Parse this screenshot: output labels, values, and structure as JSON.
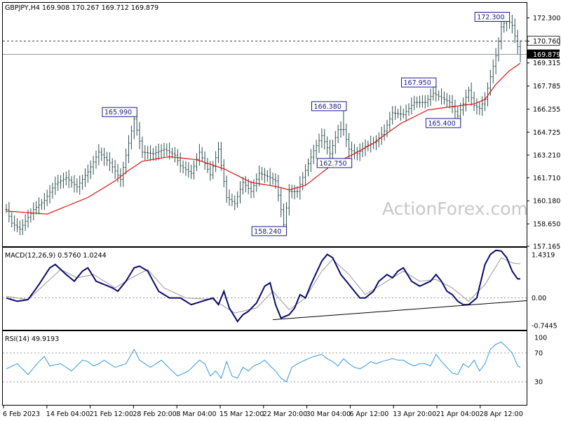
{
  "chart_data": [
    {
      "type": "ohlc",
      "title": "GBPJPY,H4 169.908 170.267 169.712 169.879",
      "ylim": [
        157.165,
        173.3
      ],
      "y_ticks": [
        "172.300",
        "170.760",
        "169.315",
        "167.785",
        "166.255",
        "164.725",
        "163.210",
        "161.710",
        "160.180",
        "158.650",
        "157.165"
      ],
      "current_price": "169.879",
      "reference_level": "170.760",
      "x_labels": [
        "6 Feb 2023",
        "14 Feb 04:00",
        "21 Feb 12:00",
        "28 Feb 20:00",
        "8 Mar 04:00",
        "15 Mar 12:00",
        "22 Mar 20:00",
        "30 Mar 04:00",
        "6 Apr 12:00",
        "13 Apr 20:00",
        "21 Apr 04:00",
        "28 Apr 12:00"
      ],
      "annotations": [
        {
          "text": "165.990",
          "bar": 47,
          "value": 165.99,
          "type": "high"
        },
        {
          "text": "158.240",
          "bar": 102,
          "value": 158.24,
          "type": "low"
        },
        {
          "text": "166.380",
          "bar": 124,
          "value": 166.38,
          "type": "high"
        },
        {
          "text": "162.750",
          "bar": 126,
          "value": 162.75,
          "type": "low"
        },
        {
          "text": "167.950",
          "bar": 157,
          "value": 167.95,
          "type": "high"
        },
        {
          "text": "165.400",
          "bar": 166,
          "value": 165.4,
          "type": "low"
        },
        {
          "text": "172.300",
          "bar": 184,
          "value": 172.3,
          "type": "high"
        }
      ],
      "price_path": [
        [
          0,
          159.6
        ],
        [
          2,
          158.7
        ],
        [
          5,
          158.3
        ],
        [
          10,
          159.6
        ],
        [
          14,
          160.2
        ],
        [
          18,
          161.3
        ],
        [
          22,
          161.7
        ],
        [
          26,
          161.1
        ],
        [
          30,
          162.1
        ],
        [
          34,
          163.4
        ],
        [
          38,
          162.7
        ],
        [
          42,
          161.6
        ],
        [
          45,
          164.0
        ],
        [
          47,
          165.6
        ],
        [
          50,
          163.4
        ],
        [
          54,
          163.3
        ],
        [
          58,
          163.6
        ],
        [
          62,
          163.2
        ],
        [
          64,
          162.5
        ],
        [
          68,
          162.0
        ],
        [
          71,
          163.4
        ],
        [
          75,
          161.9
        ],
        [
          78,
          163.6
        ],
        [
          81,
          160.4
        ],
        [
          84,
          160.0
        ],
        [
          87,
          161.4
        ],
        [
          90,
          160.8
        ],
        [
          93,
          162.0
        ],
        [
          96,
          161.8
        ],
        [
          99,
          161.5
        ],
        [
          101,
          159.6
        ],
        [
          102,
          158.6
        ],
        [
          104,
          160.8
        ],
        [
          107,
          160.8
        ],
        [
          110,
          162.2
        ],
        [
          113,
          163.5
        ],
        [
          116,
          164.5
        ],
        [
          119,
          163.3
        ],
        [
          122,
          164.9
        ],
        [
          124,
          164.9
        ],
        [
          126,
          163.6
        ],
        [
          129,
          163.3
        ],
        [
          132,
          163.8
        ],
        [
          136,
          164.1
        ],
        [
          139,
          164.8
        ],
        [
          142,
          166.0
        ],
        [
          146,
          165.9
        ],
        [
          150,
          166.7
        ],
        [
          154,
          166.7
        ],
        [
          157,
          167.3
        ],
        [
          160,
          167.0
        ],
        [
          163,
          166.7
        ],
        [
          166,
          165.8
        ],
        [
          168,
          166.6
        ],
        [
          170,
          167.5
        ],
        [
          172,
          166.5
        ],
        [
          174,
          166.3
        ],
        [
          176,
          166.9
        ],
        [
          178,
          168.4
        ],
        [
          180,
          169.8
        ],
        [
          182,
          171.7
        ],
        [
          184,
          172.2
        ],
        [
          186,
          171.8
        ],
        [
          188,
          170.4
        ],
        [
          189,
          169.879
        ]
      ],
      "moving_average": {
        "color": "#dd1111",
        "path": [
          [
            0,
            159.5
          ],
          [
            15,
            159.3
          ],
          [
            30,
            160.4
          ],
          [
            40,
            161.5
          ],
          [
            45,
            162.2
          ],
          [
            50,
            162.8
          ],
          [
            60,
            163.1
          ],
          [
            70,
            162.9
          ],
          [
            80,
            162.3
          ],
          [
            90,
            161.4
          ],
          [
            100,
            161.1
          ],
          [
            104,
            160.9
          ],
          [
            110,
            161.2
          ],
          [
            120,
            162.6
          ],
          [
            128,
            163.3
          ],
          [
            135,
            164.0
          ],
          [
            145,
            165.3
          ],
          [
            155,
            166.2
          ],
          [
            163,
            166.4
          ],
          [
            172,
            166.6
          ],
          [
            176,
            166.9
          ],
          [
            180,
            167.9
          ],
          [
            185,
            168.8
          ],
          [
            189,
            169.3
          ]
        ]
      }
    },
    {
      "type": "line",
      "title": "MACD(12,26,9) 0.5760 1.0244",
      "ylim": [
        -0.7445,
        1.4319
      ],
      "y_ticks": [
        "1.4319",
        "0.00",
        "-0.7445"
      ],
      "series": [
        {
          "color": "#0a0a6e",
          "path": [
            [
              0,
              0.0
            ],
            [
              4,
              -0.1
            ],
            [
              8,
              -0.05
            ],
            [
              12,
              0.4
            ],
            [
              16,
              0.9
            ],
            [
              18,
              1.0
            ],
            [
              22,
              0.7
            ],
            [
              25,
              0.5
            ],
            [
              28,
              0.8
            ],
            [
              30,
              0.9
            ],
            [
              33,
              0.5
            ],
            [
              36,
              0.4
            ],
            [
              39,
              0.3
            ],
            [
              41,
              0.2
            ],
            [
              44,
              0.5
            ],
            [
              47,
              0.9
            ],
            [
              49,
              0.95
            ],
            [
              52,
              0.8
            ],
            [
              56,
              0.2
            ],
            [
              60,
              0.0
            ],
            [
              64,
              0.0
            ],
            [
              68,
              -0.2
            ],
            [
              72,
              -0.1
            ],
            [
              74,
              -0.05
            ],
            [
              76,
              0.0
            ],
            [
              78,
              -0.2
            ],
            [
              80,
              0.2
            ],
            [
              82,
              -0.3
            ],
            [
              85,
              -0.7
            ],
            [
              87,
              -0.5
            ],
            [
              89,
              -0.4
            ],
            [
              92,
              -0.15
            ],
            [
              95,
              0.35
            ],
            [
              97,
              0.45
            ],
            [
              99,
              -0.2
            ],
            [
              101,
              -0.6
            ],
            [
              104,
              -0.5
            ],
            [
              106,
              -0.3
            ],
            [
              108,
              0.1
            ],
            [
              110,
              0.0
            ],
            [
              112,
              0.4
            ],
            [
              116,
              1.1
            ],
            [
              118,
              1.3
            ],
            [
              120,
              1.2
            ],
            [
              123,
              0.7
            ],
            [
              125,
              0.5
            ],
            [
              128,
              0.2
            ],
            [
              130,
              0.0
            ],
            [
              132,
              0.0
            ],
            [
              135,
              0.2
            ],
            [
              137,
              0.5
            ],
            [
              140,
              0.7
            ],
            [
              142,
              0.6
            ],
            [
              144,
              0.8
            ],
            [
              146,
              0.9
            ],
            [
              149,
              0.5
            ],
            [
              152,
              0.35
            ],
            [
              156,
              0.5
            ],
            [
              158,
              0.7
            ],
            [
              160,
              0.5
            ],
            [
              162,
              0.2
            ],
            [
              164,
              0.1
            ],
            [
              166,
              -0.1
            ],
            [
              168,
              -0.2
            ],
            [
              170,
              -0.2
            ],
            [
              173,
              0.0
            ],
            [
              176,
              1.0
            ],
            [
              178,
              1.3
            ],
            [
              180,
              1.42
            ],
            [
              182,
              1.4
            ],
            [
              184,
              1.2
            ],
            [
              186,
              0.8
            ],
            [
              188,
              0.57
            ]
          ]
        },
        {
          "color": "#999999",
          "path": [
            [
              0,
              0.05
            ],
            [
              8,
              -0.05
            ],
            [
              14,
              0.4
            ],
            [
              20,
              0.85
            ],
            [
              26,
              0.6
            ],
            [
              32,
              0.7
            ],
            [
              40,
              0.3
            ],
            [
              46,
              0.6
            ],
            [
              52,
              0.85
            ],
            [
              58,
              0.3
            ],
            [
              66,
              0.0
            ],
            [
              76,
              -0.05
            ],
            [
              84,
              -0.45
            ],
            [
              92,
              -0.3
            ],
            [
              98,
              0.2
            ],
            [
              104,
              -0.35
            ],
            [
              110,
              0.0
            ],
            [
              116,
              0.8
            ],
            [
              120,
              1.15
            ],
            [
              126,
              0.7
            ],
            [
              132,
              0.1
            ],
            [
              138,
              0.4
            ],
            [
              146,
              0.8
            ],
            [
              152,
              0.5
            ],
            [
              158,
              0.55
            ],
            [
              164,
              0.3
            ],
            [
              170,
              -0.1
            ],
            [
              176,
              0.4
            ],
            [
              182,
              1.2
            ],
            [
              186,
              1.05
            ],
            [
              188,
              1.02
            ]
          ]
        }
      ],
      "trendline": {
        "from": [
          98,
          -0.65
        ],
        "to": [
          189,
          -0.08
        ]
      }
    },
    {
      "type": "line",
      "title": "RSI(14) 49.9193",
      "ylim": [
        0,
        100
      ],
      "y_ticks": [
        "100",
        "70",
        "30"
      ],
      "levels": [
        70,
        30
      ],
      "series": [
        {
          "color": "#3399dd",
          "path": [
            [
              0,
              48
            ],
            [
              4,
              55
            ],
            [
              8,
              40
            ],
            [
              12,
              58
            ],
            [
              14,
              65
            ],
            [
              16,
              52
            ],
            [
              20,
              55
            ],
            [
              24,
              45
            ],
            [
              28,
              60
            ],
            [
              30,
              58
            ],
            [
              32,
              52
            ],
            [
              34,
              55
            ],
            [
              36,
              60
            ],
            [
              40,
              50
            ],
            [
              44,
              55
            ],
            [
              47,
              75
            ],
            [
              49,
              60
            ],
            [
              53,
              50
            ],
            [
              57,
              60
            ],
            [
              61,
              45
            ],
            [
              63,
              38
            ],
            [
              67,
              45
            ],
            [
              71,
              60
            ],
            [
              73,
              55
            ],
            [
              75,
              38
            ],
            [
              77,
              45
            ],
            [
              79,
              35
            ],
            [
              81,
              58
            ],
            [
              83,
              38
            ],
            [
              85,
              35
            ],
            [
              87,
              50
            ],
            [
              89,
              45
            ],
            [
              91,
              52
            ],
            [
              93,
              55
            ],
            [
              95,
              60
            ],
            [
              97,
              52
            ],
            [
              99,
              45
            ],
            [
              101,
              35
            ],
            [
              103,
              30
            ],
            [
              105,
              50
            ],
            [
              107,
              55
            ],
            [
              111,
              62
            ],
            [
              113,
              65
            ],
            [
              116,
              68
            ],
            [
              118,
              62
            ],
            [
              120,
              58
            ],
            [
              122,
              52
            ],
            [
              124,
              62
            ],
            [
              126,
              55
            ],
            [
              128,
              50
            ],
            [
              130,
              48
            ],
            [
              132,
              52
            ],
            [
              134,
              58
            ],
            [
              136,
              55
            ],
            [
              138,
              58
            ],
            [
              140,
              60
            ],
            [
              142,
              62
            ],
            [
              144,
              60
            ],
            [
              146,
              60
            ],
            [
              148,
              55
            ],
            [
              150,
              52
            ],
            [
              152,
              55
            ],
            [
              154,
              55
            ],
            [
              156,
              52
            ],
            [
              158,
              68
            ],
            [
              160,
              58
            ],
            [
              162,
              50
            ],
            [
              164,
              42
            ],
            [
              166,
              40
            ],
            [
              168,
              55
            ],
            [
              170,
              50
            ],
            [
              172,
              60
            ],
            [
              174,
              45
            ],
            [
              176,
              55
            ],
            [
              178,
              75
            ],
            [
              180,
              82
            ],
            [
              182,
              85
            ],
            [
              184,
              78
            ],
            [
              186,
              70
            ],
            [
              188,
              52
            ],
            [
              189,
              50
            ]
          ]
        }
      ]
    }
  ],
  "watermark": "ActionForex.com"
}
